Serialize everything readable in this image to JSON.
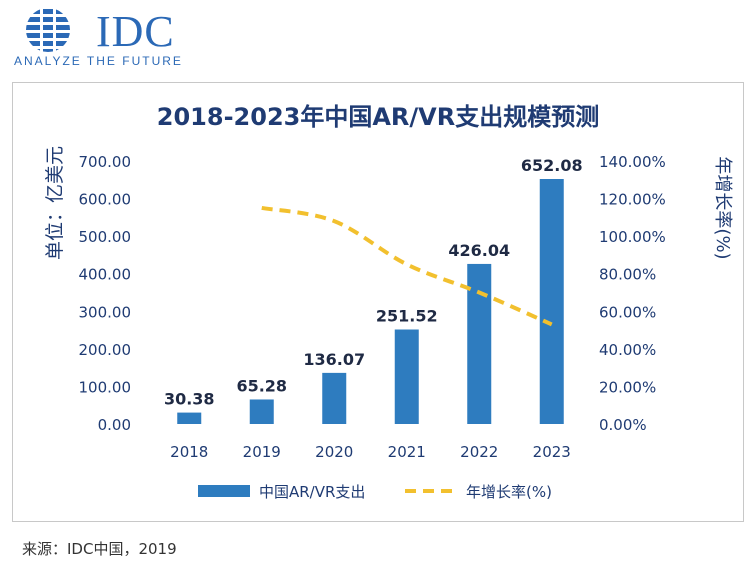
{
  "logo": {
    "name": "IDC",
    "tagline": "ANALYZE THE FUTURE"
  },
  "source": "来源：IDC中国，2019",
  "colors": {
    "bar": "#2e7cbf",
    "line": "#f2c02e",
    "axis_text": "#1f3b73",
    "title": "#1f3b73"
  },
  "chart_data": {
    "type": "bar",
    "title": "2018-2023年中国AR/VR支出规模预测",
    "ylabel": "单位：亿美元",
    "y2label": "年增长率(%)",
    "ylim": [
      0,
      700
    ],
    "y2lim": [
      0,
      140
    ],
    "yticks": [
      "700.00",
      "600.00",
      "500.00",
      "400.00",
      "300.00",
      "200.00",
      "100.00",
      "0.00"
    ],
    "y2ticks": [
      "140.00%",
      "120.00%",
      "100.00%",
      "80.00%",
      "60.00%",
      "40.00%",
      "20.00%",
      "0.00%"
    ],
    "categories": [
      "2018",
      "2019",
      "2020",
      "2021",
      "2022",
      "2023"
    ],
    "series": [
      {
        "name": "中国AR/VR支出",
        "type": "bar",
        "axis": "left",
        "values": [
          30.38,
          65.28,
          136.07,
          251.52,
          426.04,
          652.08
        ],
        "labels": [
          "30.38",
          "65.28",
          "136.07",
          "251.52",
          "426.04",
          "652.08"
        ]
      },
      {
        "name": "年增长率(%)",
        "type": "line",
        "axis": "right",
        "style": "dashed",
        "values": [
          null,
          115,
          108,
          85,
          70,
          53
        ]
      }
    ],
    "grid": false,
    "legend": "bottom"
  }
}
